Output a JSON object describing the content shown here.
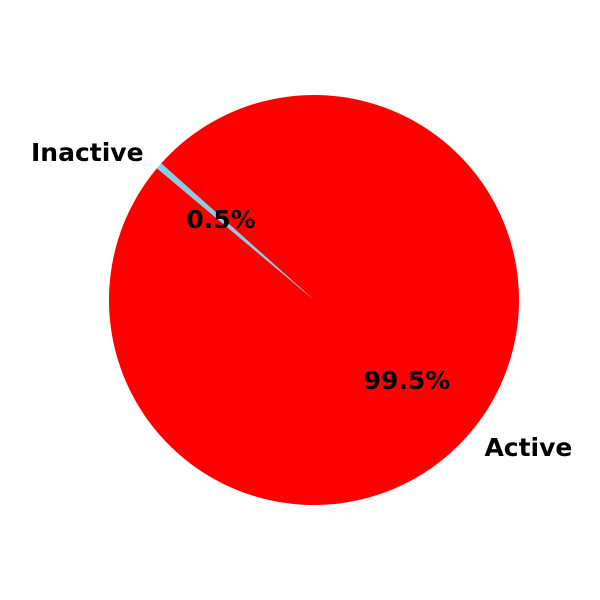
{
  "chart_data": {
    "type": "pie",
    "title": "",
    "slices": [
      {
        "label": "Active",
        "value": 99.5,
        "pct_label": "99.5%",
        "color": "#ff0000"
      },
      {
        "label": "Inactive",
        "value": 0.5,
        "pct_label": "0.5%",
        "color": "#87ceeb"
      }
    ],
    "legend": "none"
  }
}
